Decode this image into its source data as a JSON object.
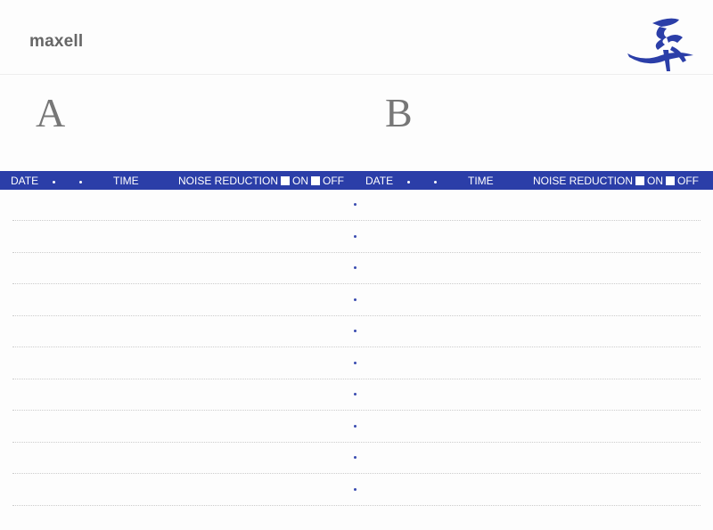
{
  "brand": "maxell",
  "logo_icon": "calligraphy-logo",
  "sides": {
    "a": "A",
    "b": "B"
  },
  "header": {
    "date": "DATE",
    "time": "TIME",
    "noise_reduction": "NOISE REDUCTION",
    "on": "ON",
    "off": "OFF"
  },
  "colors": {
    "bar": "#2b3ea8",
    "text_gray": "#666666"
  },
  "line_count": 10
}
